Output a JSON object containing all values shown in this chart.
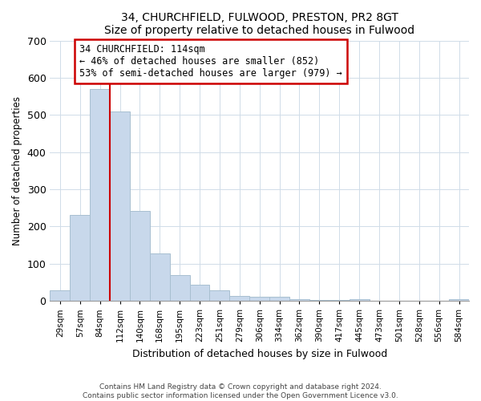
{
  "title": "34, CHURCHFIELD, FULWOOD, PRESTON, PR2 8GT",
  "subtitle": "Size of property relative to detached houses in Fulwood",
  "xlabel": "Distribution of detached houses by size in Fulwood",
  "ylabel": "Number of detached properties",
  "bar_labels": [
    "29sqm",
    "57sqm",
    "84sqm",
    "112sqm",
    "140sqm",
    "168sqm",
    "195sqm",
    "223sqm",
    "251sqm",
    "279sqm",
    "306sqm",
    "334sqm",
    "362sqm",
    "390sqm",
    "417sqm",
    "445sqm",
    "473sqm",
    "501sqm",
    "528sqm",
    "556sqm",
    "584sqm"
  ],
  "bar_values": [
    28,
    230,
    570,
    510,
    242,
    127,
    70,
    43,
    27,
    14,
    10,
    10,
    5,
    3,
    2,
    5,
    1,
    0,
    0,
    0,
    5
  ],
  "bar_color": "#c8d8eb",
  "bar_edge_color": "#a8bfd0",
  "vline_color": "#cc0000",
  "annotation_title": "34 CHURCHFIELD: 114sqm",
  "annotation_line1": "← 46% of detached houses are smaller (852)",
  "annotation_line2": "53% of semi-detached houses are larger (979) →",
  "annotation_box_color": "#ffffff",
  "annotation_box_edge": "#cc0000",
  "ylim": [
    0,
    700
  ],
  "yticks": [
    0,
    100,
    200,
    300,
    400,
    500,
    600,
    700
  ],
  "footer1": "Contains HM Land Registry data © Crown copyright and database right 2024.",
  "footer2": "Contains public sector information licensed under the Open Government Licence v3.0.",
  "bg_color": "#f0f4f8"
}
